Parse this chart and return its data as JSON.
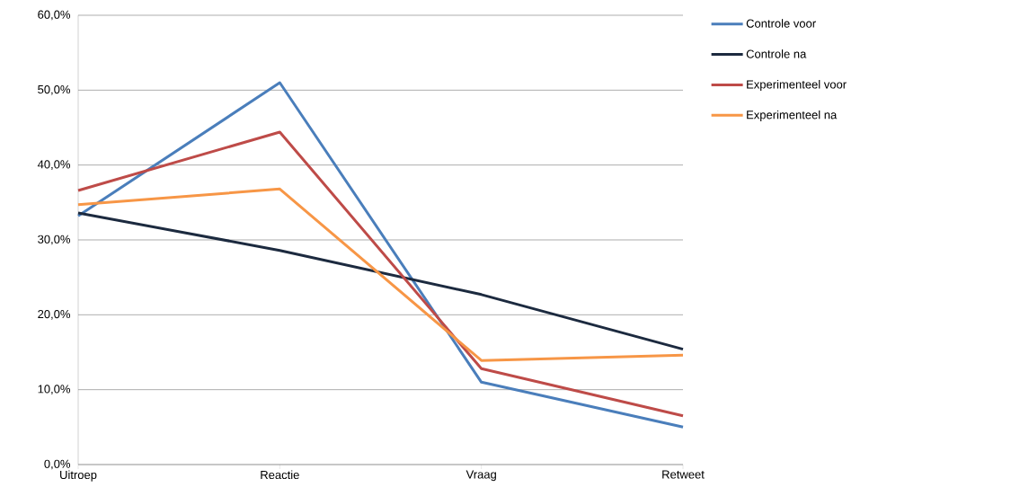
{
  "chart_data": {
    "type": "line",
    "categories": [
      "Uitroep",
      "Reactie",
      "Vraag",
      "Retweet"
    ],
    "series": [
      {
        "name": "Controle voor",
        "color": "#4a7ebb",
        "values": [
          33.2,
          51.0,
          11.0,
          5.0
        ]
      },
      {
        "name": "Controle na",
        "color": "#1c2a3f",
        "values": [
          33.6,
          28.6,
          22.7,
          15.4
        ]
      },
      {
        "name": "Experimenteel voor",
        "color": "#be4b48",
        "values": [
          36.6,
          44.4,
          12.8,
          6.5
        ]
      },
      {
        "name": "Experimenteel na",
        "color": "#f79646",
        "values": [
          34.7,
          36.8,
          13.9,
          14.6
        ]
      }
    ],
    "ylim": [
      0,
      60
    ],
    "yticks": [
      {
        "value": 0,
        "label": "0,0%"
      },
      {
        "value": 10,
        "label": "10,0%"
      },
      {
        "value": 20,
        "label": "20,0%"
      },
      {
        "value": 30,
        "label": "30,0%"
      },
      {
        "value": 40,
        "label": "40,0%"
      },
      {
        "value": 50,
        "label": "50,0%"
      },
      {
        "value": 60,
        "label": "60,0%"
      }
    ],
    "grid": "y",
    "legend": "right",
    "marker": "none",
    "line_style": "solid"
  }
}
